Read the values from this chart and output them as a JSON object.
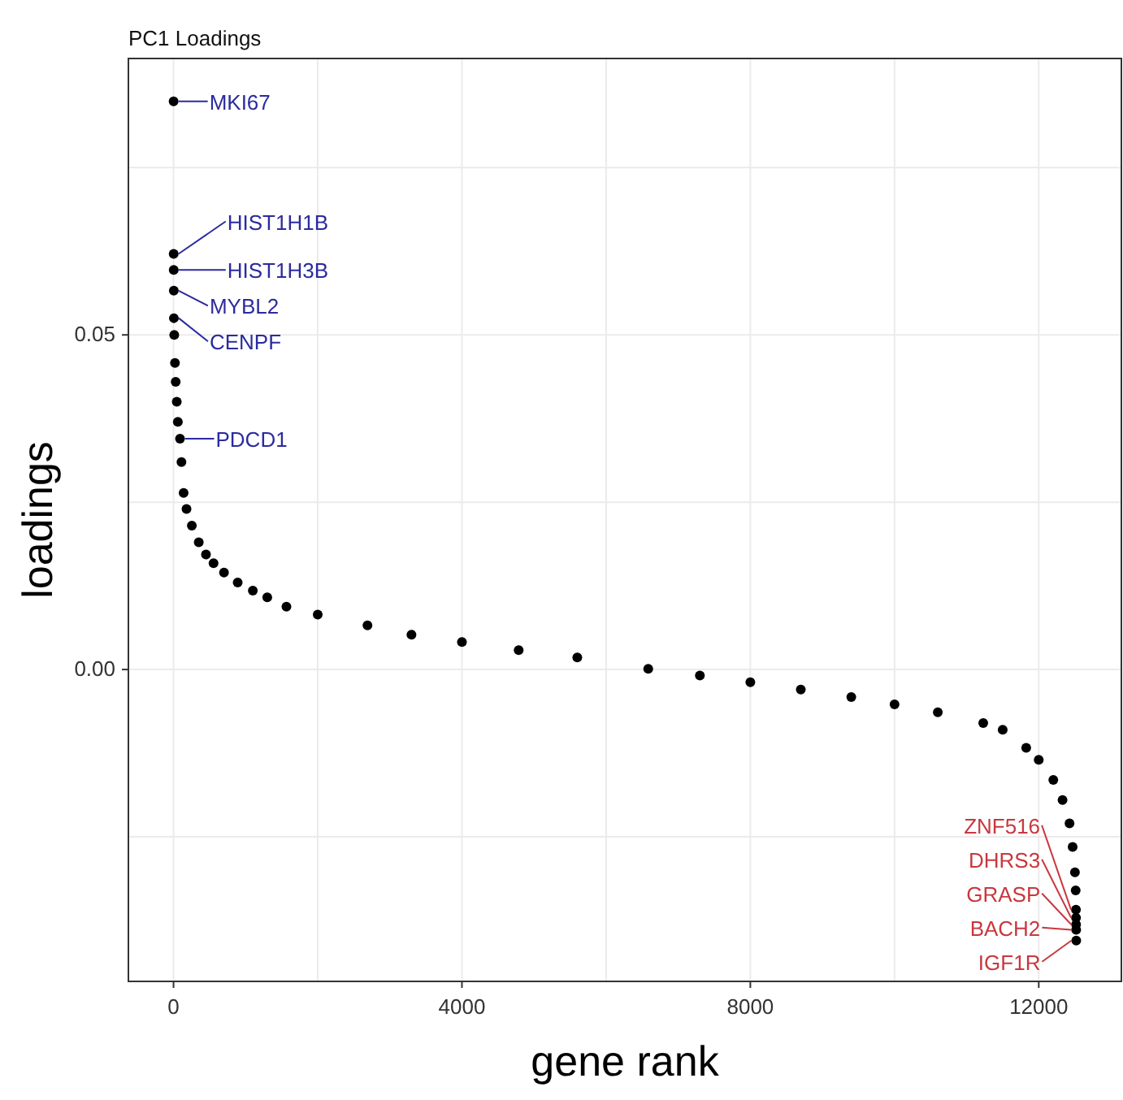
{
  "chart_data": {
    "type": "scatter",
    "title": "PC1 Loadings",
    "xlabel": "gene rank",
    "ylabel": "loadings",
    "x": [
      1,
      2,
      3,
      4,
      5,
      10,
      20,
      30,
      45,
      60,
      90,
      110,
      140,
      180,
      254,
      350,
      450,
      555,
      700,
      890,
      1100,
      1300,
      1566,
      2000,
      2690,
      3300,
      4000,
      4787,
      5600,
      6584,
      7300,
      8000,
      8700,
      9400,
      10000,
      10600,
      11230,
      11500,
      11826,
      12000,
      12202,
      12330,
      12427,
      12470,
      12502,
      12512,
      12516,
      12517,
      12518,
      12519,
      12520
    ],
    "series": [
      {
        "color": "#000000",
        "values": [
          0.0849,
          0.0621,
          0.0597,
          0.0566,
          0.0525,
          0.05,
          0.0458,
          0.043,
          0.04,
          0.037,
          0.0345,
          0.031,
          0.0264,
          0.024,
          0.0215,
          0.019,
          0.0172,
          0.0159,
          0.0145,
          0.013,
          0.0118,
          0.0108,
          0.0094,
          0.0082,
          0.0066,
          0.0052,
          0.0041,
          0.0029,
          0.0018,
          0.0001,
          -0.0009,
          -0.0019,
          -0.003,
          -0.0041,
          -0.0052,
          -0.0064,
          -0.008,
          -0.009,
          -0.0117,
          -0.0135,
          -0.0165,
          -0.0195,
          -0.023,
          -0.0265,
          -0.0303,
          -0.033,
          -0.0359,
          -0.0371,
          -0.0381,
          -0.0389,
          -0.0405
        ]
      }
    ],
    "annotations": [
      {
        "text": "MKI67",
        "x": 1,
        "y": 0.0849
      },
      {
        "text": "HIST1H1B",
        "x": 2,
        "y": 0.0621
      },
      {
        "text": "HIST1H3B",
        "x": 3,
        "y": 0.0597
      },
      {
        "text": "MYBL2",
        "x": 4,
        "y": 0.0566
      },
      {
        "text": "CENPF",
        "x": 5,
        "y": 0.0525
      },
      {
        "text": "PDCD1",
        "x": 90,
        "y": 0.0345
      },
      {
        "text": "ZNF516",
        "x": 12516,
        "y": -0.0359
      },
      {
        "text": "DHRS3",
        "x": 12517,
        "y": -0.0371
      },
      {
        "text": "GRASP",
        "x": 12518,
        "y": -0.0381
      },
      {
        "text": "BACH2",
        "x": 12519,
        "y": -0.0389
      },
      {
        "text": "IGF1R",
        "x": 12520,
        "y": -0.0405
      }
    ],
    "xlim": [
      -626,
      13146
    ],
    "ylim": [
      -0.0466,
      0.0913
    ],
    "xticks": [
      0,
      {
        "value": 2000,
        "label": null
      },
      4000,
      {
        "value": 6000,
        "label": null
      },
      8000,
      {
        "value": 10000,
        "label": null
      },
      12000
    ],
    "yticks": [
      {
        "value": -0.025,
        "label": null
      },
      {
        "value": 0,
        "label": "0.00"
      },
      {
        "value": 0.025,
        "label": null
      },
      {
        "value": 0.05,
        "label": "0.05"
      },
      {
        "value": 0.075,
        "label": null
      }
    ],
    "grid": true,
    "marker": "circle"
  }
}
